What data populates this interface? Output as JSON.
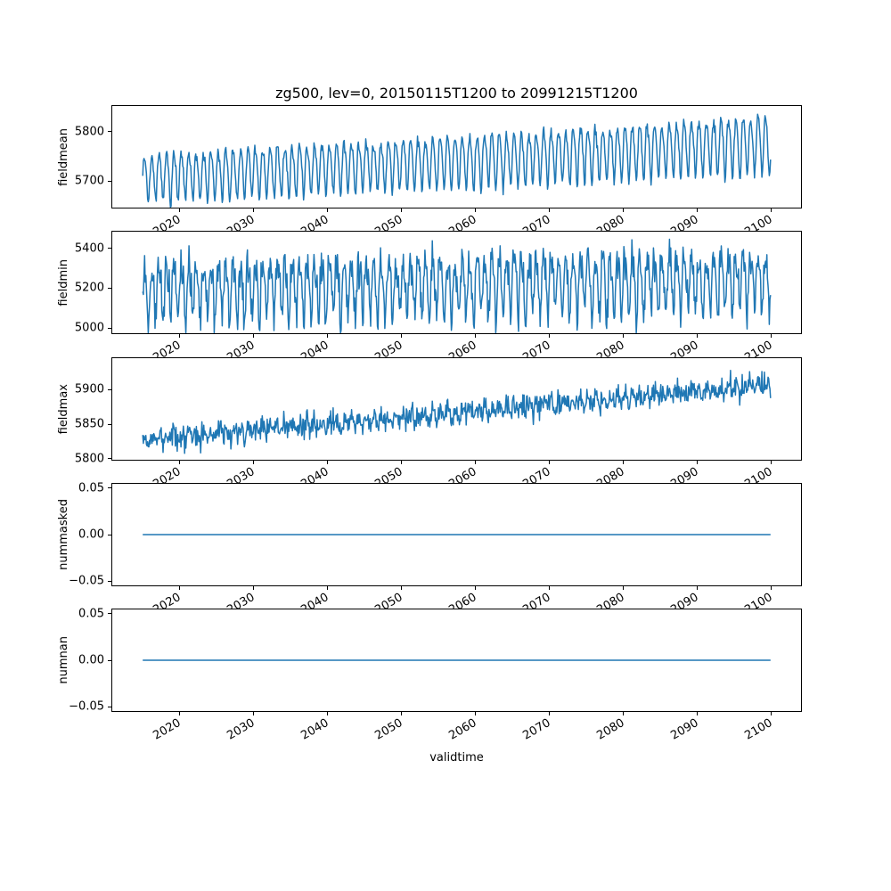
{
  "figure": {
    "title": "zg500, lev=0, 20150115T1200 to 20991215T1200",
    "background": "#ffffff",
    "line_color": "#1f77b4",
    "spine_color": "#000000"
  },
  "x_axis": {
    "label": "validtime",
    "xlim": [
      2010.8,
      2104.2
    ],
    "tick_rotation_deg": 30,
    "ticks": [
      {
        "year": 2020,
        "label": "2020"
      },
      {
        "year": 2030,
        "label": "2030"
      },
      {
        "year": 2040,
        "label": "2040"
      },
      {
        "year": 2050,
        "label": "2050"
      },
      {
        "year": 2060,
        "label": "2060"
      },
      {
        "year": 2070,
        "label": "2070"
      },
      {
        "year": 2080,
        "label": "2080"
      },
      {
        "year": 2090,
        "label": "2090"
      },
      {
        "year": 2100,
        "label": "2100"
      }
    ]
  },
  "chart_data": [
    {
      "type": "line",
      "ylabel": "fieldmean",
      "x_start": 2015.042,
      "x_end": 2099.958,
      "points_per_year": 12,
      "ylim": [
        5644,
        5854
      ],
      "yticks": [
        {
          "v": 5700,
          "label": "5700"
        },
        {
          "v": 5800,
          "label": "5800"
        }
      ],
      "gen": {
        "kind": "seasonal",
        "base_start": 5708,
        "base_end": 5778,
        "amp_start": 46,
        "amp_end": 55,
        "harm2": 0.2,
        "noise_sd": 6,
        "seed": 7
      }
    },
    {
      "type": "line",
      "ylabel": "fieldmin",
      "x_start": 2015.042,
      "x_end": 2099.958,
      "points_per_year": 12,
      "ylim": [
        4969,
        5488
      ],
      "yticks": [
        {
          "v": 5000,
          "label": "5000"
        },
        {
          "v": 5200,
          "label": "5200"
        },
        {
          "v": 5400,
          "label": "5400"
        }
      ],
      "gen": {
        "kind": "seasonal",
        "base_start": 5195,
        "base_end": 5245,
        "amp_start": 130,
        "amp_end": 135,
        "harm2": 0.3,
        "noise_sd": 45,
        "seed": 13
      }
    },
    {
      "type": "line",
      "ylabel": "fieldmax",
      "x_start": 2015.042,
      "x_end": 2099.958,
      "points_per_year": 12,
      "ylim": [
        5797,
        5947
      ],
      "yticks": [
        {
          "v": 5800,
          "label": "5800"
        },
        {
          "v": 5850,
          "label": "5850"
        },
        {
          "v": 5900,
          "label": "5900"
        }
      ],
      "gen": {
        "kind": "seasonal",
        "base_start": 5827,
        "base_end": 5906,
        "amp_start": 5,
        "amp_end": 7,
        "harm2": 0.2,
        "noise_sd": 8,
        "seed": 42,
        "spike_prob": 0.035,
        "spike_max": 38
      }
    },
    {
      "type": "line",
      "ylabel": "nummasked",
      "x_start": 2015.042,
      "x_end": 2099.958,
      "points_per_year": 12,
      "ylim": [
        -0.0555,
        0.0555
      ],
      "yticks": [
        {
          "v": -0.05,
          "label": "−0.05"
        },
        {
          "v": 0.0,
          "label": "0.00"
        },
        {
          "v": 0.05,
          "label": "0.05"
        }
      ],
      "gen": {
        "kind": "constant",
        "value": 0
      }
    },
    {
      "type": "line",
      "ylabel": "numnan",
      "x_start": 2015.042,
      "x_end": 2099.958,
      "points_per_year": 12,
      "ylim": [
        -0.0555,
        0.0555
      ],
      "yticks": [
        {
          "v": -0.05,
          "label": "−0.05"
        },
        {
          "v": 0.0,
          "label": "0.00"
        },
        {
          "v": 0.05,
          "label": "0.05"
        }
      ],
      "gen": {
        "kind": "constant",
        "value": 0
      }
    }
  ]
}
